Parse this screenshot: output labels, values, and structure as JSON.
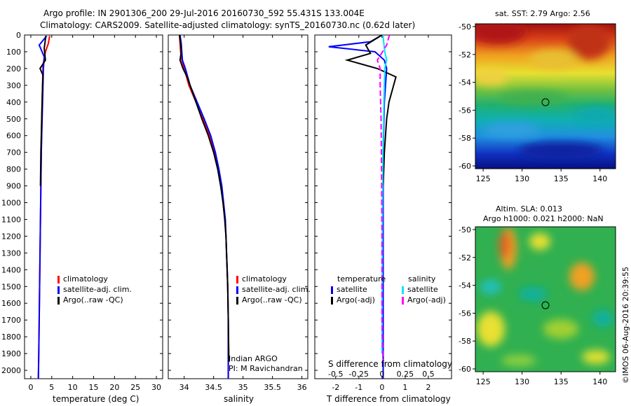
{
  "header": {
    "line1": "Argo profile: IN 2901306_200 29-Jul-2016 20160730_592 55.431S 133.004E",
    "line2": "Climatology: CARS2009. Satellite-adjusted climatology: synTS_20160730.nc (0.62d later)"
  },
  "footer_stamp": "©IMOS 06-Aug-2016 20:39:55",
  "colors": {
    "climatology": "#ff0000",
    "satellite_clim": "#0000ff",
    "argo": "#000000",
    "s_satellite": "#00e5ff",
    "s_argo": "#ff00ff"
  },
  "chart_data": [
    {
      "name": "temperature-profile",
      "type": "line",
      "xlabel": "temperature (deg C)",
      "ylabel": "",
      "xlim": [
        -1.5,
        31.5
      ],
      "ylim": [
        2050,
        0
      ],
      "xticks": [
        0,
        5,
        10,
        15,
        20,
        25,
        30
      ],
      "yticks": [
        0,
        100,
        200,
        300,
        400,
        500,
        600,
        700,
        800,
        900,
        1000,
        1100,
        1200,
        1300,
        1400,
        1500,
        1600,
        1700,
        1800,
        1900,
        2000
      ],
      "legend": [
        "climatology",
        "satellite-adj. clim.",
        "Argo(..raw -QC)"
      ],
      "series": [
        {
          "name": "climatology",
          "color": "#ff0000",
          "points": [
            [
              4.5,
              5
            ],
            [
              4.2,
              50
            ],
            [
              3.5,
              100
            ],
            [
              2.9,
              180
            ],
            [
              2.8,
              300
            ],
            [
              2.6,
              500
            ],
            [
              2.5,
              700
            ],
            [
              2.4,
              900
            ],
            [
              2.3,
              1100
            ],
            [
              2.2,
              1300
            ],
            [
              2.1,
              1500
            ],
            [
              2.0,
              1700
            ],
            [
              1.9,
              1900
            ],
            [
              1.8,
              2050
            ]
          ]
        },
        {
          "name": "satellite-adj. clim.",
          "color": "#0000ff",
          "points": [
            [
              3.8,
              5
            ],
            [
              2.0,
              60
            ],
            [
              3.2,
              130
            ],
            [
              3.0,
              200
            ],
            [
              2.9,
              300
            ],
            [
              2.7,
              500
            ],
            [
              2.5,
              700
            ],
            [
              2.4,
              900
            ],
            [
              2.3,
              1100
            ],
            [
              2.2,
              1300
            ],
            [
              2.1,
              1500
            ],
            [
              2.0,
              1700
            ],
            [
              1.9,
              1900
            ],
            [
              1.8,
              2050
            ]
          ]
        },
        {
          "name": "Argo(..raw -QC)",
          "color": "#000000",
          "points": [
            [
              3.6,
              5
            ],
            [
              3.2,
              80
            ],
            [
              3.5,
              150
            ],
            [
              2.2,
              200
            ],
            [
              2.9,
              240
            ],
            [
              2.8,
              300
            ],
            [
              2.6,
              500
            ],
            [
              2.4,
              700
            ],
            [
              2.3,
              900
            ]
          ]
        }
      ]
    },
    {
      "name": "salinity-profile",
      "type": "line",
      "xlabel": "salinity",
      "ylabel": "",
      "xlim": [
        33.73,
        36.1
      ],
      "ylim": [
        2050,
        0
      ],
      "xticks": [
        34,
        34.5,
        35,
        35.5,
        36
      ],
      "legend": [
        "climatology",
        "satellite-adj. clim.",
        "Argo(..raw -QC)"
      ],
      "annotation": [
        "Indian ARGO",
        "PI: M Ravichandran"
      ],
      "series": [
        {
          "name": "climatology",
          "color": "#ff0000",
          "points": [
            [
              33.92,
              0
            ],
            [
              33.93,
              50
            ],
            [
              33.94,
              100
            ],
            [
              33.96,
              150
            ],
            [
              34.0,
              200
            ],
            [
              34.08,
              300
            ],
            [
              34.2,
              400
            ],
            [
              34.32,
              500
            ],
            [
              34.43,
              600
            ],
            [
              34.52,
              700
            ],
            [
              34.58,
              800
            ],
            [
              34.63,
              900
            ],
            [
              34.66,
              1000
            ],
            [
              34.69,
              1100
            ],
            [
              34.71,
              1200
            ],
            [
              34.72,
              1300
            ],
            [
              34.73,
              1400
            ],
            [
              34.74,
              1500
            ],
            [
              34.75,
              1700
            ],
            [
              34.75,
              2050
            ]
          ]
        },
        {
          "name": "satellite-adj. clim.",
          "color": "#0000ff",
          "points": [
            [
              33.93,
              0
            ],
            [
              33.95,
              50
            ],
            [
              33.96,
              100
            ],
            [
              33.97,
              150
            ],
            [
              34.02,
              200
            ],
            [
              34.1,
              300
            ],
            [
              34.22,
              400
            ],
            [
              34.34,
              500
            ],
            [
              34.45,
              600
            ],
            [
              34.53,
              700
            ],
            [
              34.59,
              800
            ],
            [
              34.64,
              900
            ],
            [
              34.67,
              1000
            ],
            [
              34.7,
              1100
            ],
            [
              34.71,
              1200
            ],
            [
              34.72,
              1300
            ],
            [
              34.73,
              1400
            ],
            [
              34.74,
              1500
            ],
            [
              34.75,
              1700
            ],
            [
              34.75,
              2050
            ]
          ]
        },
        {
          "name": "Argo(..raw -QC)",
          "color": "#000000",
          "points": [
            [
              33.92,
              0
            ],
            [
              33.94,
              50
            ],
            [
              33.95,
              100
            ],
            [
              33.93,
              150
            ],
            [
              33.98,
              200
            ],
            [
              34.05,
              250
            ],
            [
              34.1,
              300
            ],
            [
              34.2,
              400
            ],
            [
              34.3,
              500
            ],
            [
              34.41,
              600
            ],
            [
              34.5,
              700
            ],
            [
              34.57,
              800
            ],
            [
              34.62,
              900
            ],
            [
              34.66,
              1000
            ],
            [
              34.69,
              1100
            ],
            [
              34.71,
              1200
            ],
            [
              34.72,
              1300
            ],
            [
              34.73,
              1400
            ],
            [
              34.74,
              1500
            ],
            [
              34.75,
              1700
            ],
            [
              34.76,
              1950
            ]
          ]
        }
      ]
    },
    {
      "name": "difference-profile",
      "type": "line",
      "xlabel": "T difference from climatology",
      "xlabel_top": "S difference from climatology",
      "xlim": [
        -2.9,
        3.0
      ],
      "ylim": [
        2050,
        0
      ],
      "xticks": [
        -2,
        -1,
        0,
        1,
        2
      ],
      "xticks_s": [
        -0.5,
        -0.25,
        0,
        0.25,
        0.5
      ],
      "xlim_s": [
        -0.725,
        0.75
      ],
      "legend_temperature": {
        "title": "temperature",
        "items": [
          "satellite",
          "Argo(-adj)"
        ]
      },
      "legend_salinity": {
        "title": "salinity",
        "items": [
          "satellite",
          "Argo(-adj)"
        ]
      },
      "series": [
        {
          "name": "T satellite",
          "axis": "T",
          "color": "#0000ff",
          "points": [
            [
              0,
              0
            ],
            [
              -0.5,
              40
            ],
            [
              -2.3,
              70
            ],
            [
              -0.3,
              100
            ],
            [
              0.1,
              150
            ],
            [
              0.2,
              200
            ],
            [
              0.1,
              400
            ],
            [
              0.05,
              700
            ],
            [
              0.05,
              2050
            ]
          ]
        },
        {
          "name": "T Argo(-adj)",
          "axis": "T",
          "color": "#000000",
          "points": [
            [
              0,
              0
            ],
            [
              -0.7,
              60
            ],
            [
              -0.5,
              110
            ],
            [
              -1.5,
              150
            ],
            [
              -0.2,
              200
            ],
            [
              0.6,
              250
            ],
            [
              0.5,
              300
            ],
            [
              0.3,
              400
            ],
            [
              0.2,
              500
            ],
            [
              0.1,
              700
            ],
            [
              0.05,
              900
            ]
          ]
        },
        {
          "name": "S satellite",
          "axis": "S",
          "color": "#00e5ff",
          "points": [
            [
              0.01,
              0
            ],
            [
              0.02,
              50
            ],
            [
              0.03,
              100
            ],
            [
              0.05,
              150
            ],
            [
              0.03,
              200
            ],
            [
              0.02,
              400
            ],
            [
              0.01,
              700
            ],
            [
              0.005,
              1000
            ],
            [
              0,
              1900
            ]
          ]
        },
        {
          "name": "S Argo(-adj)",
          "axis": "S",
          "color": "#ff00ff",
          "points": [
            [
              0.08,
              0
            ],
            [
              0.05,
              60
            ],
            [
              -0.05,
              150
            ],
            [
              -0.02,
              200
            ],
            [
              -0.02,
              300
            ],
            [
              -0.01,
              500
            ],
            [
              -0.005,
              800
            ],
            [
              0,
              1200
            ],
            [
              0,
              1700
            ],
            [
              0.01,
              1950
            ]
          ],
          "dashed": true
        }
      ]
    },
    {
      "name": "sst-map",
      "type": "heatmap",
      "title": "sat. SST: 2.79 Argo: 2.56",
      "xlim": [
        124,
        142
      ],
      "ylim": [
        -60.2,
        -49.8
      ],
      "xticks": [
        125,
        130,
        135,
        140
      ],
      "yticks": [
        -50,
        -52,
        -54,
        -56,
        -58,
        -60
      ],
      "marker": {
        "lon": 133.0,
        "lat": -55.43
      }
    },
    {
      "name": "sla-map",
      "type": "heatmap",
      "title_line1": "Altim. SLA: 0.013",
      "title_line2": "Argo h1000: 0.021 h2000: NaN",
      "xlim": [
        124,
        142
      ],
      "ylim": [
        -60.2,
        -49.8
      ],
      "xticks": [
        125,
        130,
        135,
        140
      ],
      "yticks": [
        -50,
        -52,
        -54,
        -56,
        -58,
        -60
      ],
      "marker": {
        "lon": 133.0,
        "lat": -55.43
      }
    }
  ]
}
